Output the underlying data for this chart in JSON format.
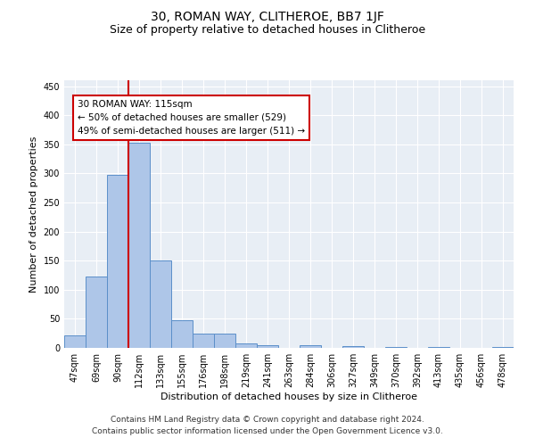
{
  "title1": "30, ROMAN WAY, CLITHEROE, BB7 1JF",
  "title2": "Size of property relative to detached houses in Clitheroe",
  "xlabel": "Distribution of detached houses by size in Clitheroe",
  "ylabel": "Number of detached properties",
  "footnote": "Contains HM Land Registry data © Crown copyright and database right 2024.\nContains public sector information licensed under the Open Government Licence v3.0.",
  "bar_labels": [
    "47sqm",
    "69sqm",
    "90sqm",
    "112sqm",
    "133sqm",
    "155sqm",
    "176sqm",
    "198sqm",
    "219sqm",
    "241sqm",
    "263sqm",
    "284sqm",
    "306sqm",
    "327sqm",
    "349sqm",
    "370sqm",
    "392sqm",
    "413sqm",
    "435sqm",
    "456sqm",
    "478sqm"
  ],
  "bar_values": [
    22,
    122,
    298,
    352,
    150,
    48,
    25,
    25,
    7,
    4,
    0,
    4,
    0,
    3,
    0,
    2,
    0,
    1,
    0,
    0,
    1
  ],
  "bar_color": "#aec6e8",
  "bar_edge_color": "#5b8fc9",
  "vline_x": 2.5,
  "vline_color": "#cc0000",
  "annotation_box_text": "30 ROMAN WAY: 115sqm\n← 50% of detached houses are smaller (529)\n49% of semi-detached houses are larger (511) →",
  "annotation_box_edge_color": "#cc0000",
  "ylim": [
    0,
    460
  ],
  "yticks": [
    0,
    50,
    100,
    150,
    200,
    250,
    300,
    350,
    400,
    450
  ],
  "background_color": "#e8eef5",
  "grid_color": "#ffffff",
  "title1_fontsize": 10,
  "title2_fontsize": 9,
  "xlabel_fontsize": 8,
  "ylabel_fontsize": 8,
  "tick_fontsize": 7,
  "footnote_fontsize": 6.5
}
